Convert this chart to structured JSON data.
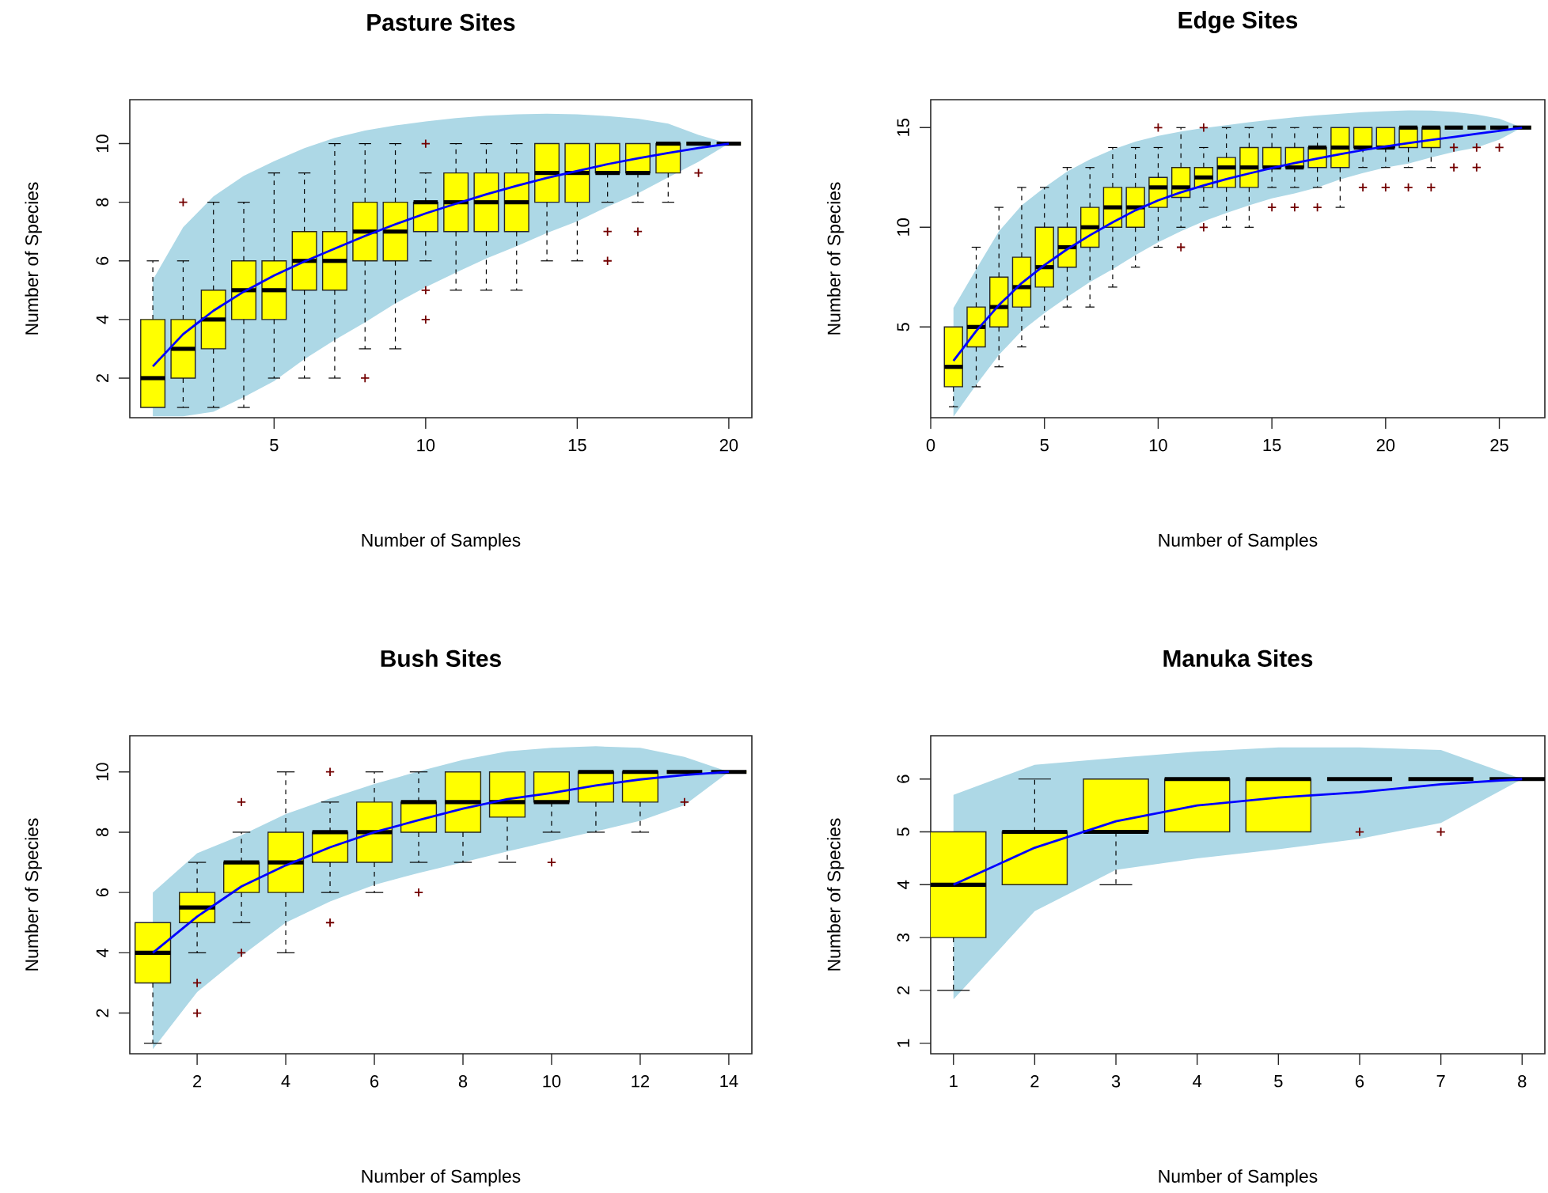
{
  "chart_data": [
    {
      "type": "box",
      "title": "Pasture Sites",
      "xlabel": "Number of Samples",
      "ylabel": "Number of Species",
      "ylim": [
        0.65,
        11.5
      ],
      "yticks": [
        2,
        4,
        6,
        8,
        10
      ],
      "categories": [
        null,
        null,
        null,
        null,
        "5",
        null,
        null,
        null,
        null,
        "10",
        null,
        null,
        null,
        null,
        "15",
        null,
        null,
        null,
        null,
        "20"
      ],
      "series": [
        {
          "type": "line",
          "color": "#0000ff",
          "values": [
            2.4,
            3.5,
            4.3,
            4.95,
            5.5,
            5.98,
            6.42,
            6.85,
            7.25,
            7.62,
            7.95,
            8.27,
            8.56,
            8.83,
            9.07,
            9.3,
            9.5,
            9.68,
            9.85,
            10
          ],
          "lower": [
            0.7,
            0.7,
            0.85,
            1.35,
            1.9,
            2.65,
            3.3,
            3.9,
            4.55,
            5.1,
            5.6,
            6.08,
            6.5,
            6.95,
            7.35,
            7.85,
            8.3,
            8.85,
            9.38,
            10
          ],
          "upper": [
            5.35,
            7.15,
            8.2,
            8.9,
            9.4,
            9.85,
            10.2,
            10.45,
            10.62,
            10.76,
            10.87,
            10.95,
            11.0,
            11.02,
            11.0,
            10.94,
            10.85,
            10.68,
            10.3,
            10
          ]
        },
        {
          "type": "box",
          "color": "#ffff00",
          "boxes": [
            {
              "low": 1,
              "q1": 1,
              "median": 2,
              "q3": 4,
              "high": 6
            },
            {
              "low": 1,
              "q1": 2,
              "median": 3,
              "q3": 4,
              "high": 6,
              "outliers": [
                8
              ]
            },
            {
              "low": 1,
              "q1": 3,
              "median": 4,
              "q3": 5,
              "high": 8
            },
            {
              "low": 1,
              "q1": 4,
              "median": 5,
              "q3": 6,
              "high": 8
            },
            {
              "low": 2,
              "q1": 4,
              "median": 5,
              "q3": 6,
              "high": 9
            },
            {
              "low": 2,
              "q1": 5,
              "median": 6,
              "q3": 7,
              "high": 9
            },
            {
              "low": 2,
              "q1": 5,
              "median": 6,
              "q3": 7,
              "high": 10
            },
            {
              "low": 3,
              "q1": 6,
              "median": 7,
              "q3": 8,
              "high": 10,
              "outliers": [
                2
              ]
            },
            {
              "low": 3,
              "q1": 6,
              "median": 7,
              "q3": 8,
              "high": 10
            },
            {
              "low": 6,
              "q1": 7,
              "median": 8,
              "q3": 8,
              "high": 9,
              "outliers": [
                10,
                5,
                4
              ]
            },
            {
              "low": 5,
              "q1": 7,
              "median": 8,
              "q3": 9,
              "high": 10
            },
            {
              "low": 5,
              "q1": 7,
              "median": 8,
              "q3": 9,
              "high": 10
            },
            {
              "low": 5,
              "q1": 7,
              "median": 8,
              "q3": 9,
              "high": 10
            },
            {
              "low": 6,
              "q1": 8,
              "median": 9,
              "q3": 10,
              "high": 10
            },
            {
              "low": 6,
              "q1": 8,
              "median": 9,
              "q3": 10,
              "high": 10
            },
            {
              "low": 8,
              "q1": 9,
              "median": 9,
              "q3": 10,
              "high": 10,
              "outliers": [
                7,
                6
              ]
            },
            {
              "low": 8,
              "q1": 9,
              "median": 9,
              "q3": 10,
              "high": 10,
              "outliers": [
                7
              ]
            },
            {
              "low": 8,
              "q1": 9,
              "median": 10,
              "q3": 10,
              "high": 10
            },
            {
              "low": 10,
              "q1": 10,
              "median": 10,
              "q3": 10,
              "high": 10,
              "outliers": [
                9
              ]
            },
            {
              "low": 10,
              "q1": 10,
              "median": 10,
              "q3": 10,
              "high": 10
            }
          ]
        }
      ]
    },
    {
      "type": "box",
      "title": "Edge Sites",
      "xlabel": "Number of Samples",
      "ylabel": "Number of Species",
      "ylim": [
        0.45,
        16.4
      ],
      "yticks": [
        5,
        10,
        15
      ],
      "categories": [
        "0",
        null,
        null,
        null,
        null,
        "5",
        null,
        null,
        null,
        null,
        "10",
        null,
        null,
        null,
        null,
        "15",
        null,
        null,
        null,
        null,
        "20",
        null,
        null,
        null,
        null,
        "25",
        null
      ],
      "series": [
        {
          "type": "line",
          "color": "#0000ff",
          "values": [
            null,
            3.3,
            4.8,
            6.1,
            7.2,
            8.1,
            8.9,
            9.6,
            10.25,
            10.85,
            11.35,
            11.75,
            12.1,
            12.42,
            12.7,
            12.97,
            13.22,
            13.45,
            13.67,
            13.87,
            14.05,
            14.22,
            14.38,
            14.53,
            14.69,
            14.84,
            15
          ],
          "lower": [
            null,
            0.5,
            2.1,
            3.6,
            4.8,
            5.7,
            6.5,
            7.25,
            7.9,
            8.6,
            9.25,
            9.8,
            10.3,
            10.72,
            11.1,
            11.45,
            11.7,
            12.0,
            12.4,
            12.72,
            13.0,
            13.2,
            13.5,
            13.78,
            14.0,
            14.4,
            15
          ],
          "upper": [
            null,
            5.95,
            7.9,
            9.8,
            11.1,
            12.0,
            12.8,
            13.4,
            13.9,
            14.3,
            14.58,
            14.8,
            14.98,
            15.12,
            15.27,
            15.4,
            15.52,
            15.62,
            15.7,
            15.77,
            15.82,
            15.86,
            15.85,
            15.78,
            15.66,
            15.45,
            15
          ]
        },
        {
          "type": "box",
          "color": "#ffff00",
          "boxes": [
            null,
            {
              "low": 1,
              "q1": 2,
              "median": 3,
              "q3": 5,
              "high": 5
            },
            {
              "low": 2,
              "q1": 4,
              "median": 5,
              "q3": 6,
              "high": 9
            },
            {
              "low": 3,
              "q1": 5,
              "median": 6,
              "q3": 7.5,
              "high": 11
            },
            {
              "low": 4,
              "q1": 6,
              "median": 7,
              "q3": 8.5,
              "high": 12
            },
            {
              "low": 5,
              "q1": 7,
              "median": 8,
              "q3": 10,
              "high": 12
            },
            {
              "low": 6,
              "q1": 8,
              "median": 9,
              "q3": 10,
              "high": 13
            },
            {
              "low": 6,
              "q1": 9,
              "median": 10,
              "q3": 11,
              "high": 13
            },
            {
              "low": 7,
              "q1": 10,
              "median": 11,
              "q3": 12,
              "high": 14
            },
            {
              "low": 8,
              "q1": 10,
              "median": 11,
              "q3": 12,
              "high": 14
            },
            {
              "low": 9,
              "q1": 11,
              "median": 12,
              "q3": 12.5,
              "high": 14,
              "outliers": [
                15
              ]
            },
            {
              "low": 10,
              "q1": 11.5,
              "median": 12,
              "q3": 13,
              "high": 15,
              "outliers": [
                9
              ]
            },
            {
              "low": 11,
              "q1": 12,
              "median": 12.5,
              "q3": 13,
              "high": 14,
              "outliers": [
                15,
                10
              ]
            },
            {
              "low": 10,
              "q1": 12,
              "median": 13,
              "q3": 13.5,
              "high": 15
            },
            {
              "low": 10,
              "q1": 12,
              "median": 13,
              "q3": 14,
              "high": 15
            },
            {
              "low": 12,
              "q1": 13,
              "median": 13,
              "q3": 14,
              "high": 15,
              "outliers": [
                11
              ]
            },
            {
              "low": 12,
              "q1": 13,
              "median": 13,
              "q3": 14,
              "high": 15,
              "outliers": [
                11
              ]
            },
            {
              "low": 12,
              "q1": 13,
              "median": 14,
              "q3": 14,
              "high": 15,
              "outliers": [
                11
              ]
            },
            {
              "low": 11,
              "q1": 13,
              "median": 14,
              "q3": 15,
              "high": 15
            },
            {
              "low": 13,
              "q1": 14,
              "median": 14,
              "q3": 15,
              "high": 15,
              "outliers": [
                12
              ]
            },
            {
              "low": 13,
              "q1": 14,
              "median": 14,
              "q3": 15,
              "high": 15,
              "outliers": [
                12
              ]
            },
            {
              "low": 13,
              "q1": 14,
              "median": 15,
              "q3": 15,
              "high": 15,
              "outliers": [
                12
              ]
            },
            {
              "low": 13,
              "q1": 14,
              "median": 15,
              "q3": 15,
              "high": 15,
              "outliers": [
                12
              ]
            },
            {
              "low": 15,
              "q1": 15,
              "median": 15,
              "q3": 15,
              "high": 15,
              "outliers": [
                14,
                13
              ]
            },
            {
              "low": 15,
              "q1": 15,
              "median": 15,
              "q3": 15,
              "high": 15,
              "outliers": [
                14,
                13
              ]
            },
            {
              "low": 15,
              "q1": 15,
              "median": 15,
              "q3": 15,
              "high": 15,
              "outliers": [
                14
              ]
            },
            {
              "low": 15,
              "q1": 15,
              "median": 15,
              "q3": 15,
              "high": 15
            }
          ]
        }
      ]
    },
    {
      "type": "box",
      "title": "Bush Sites",
      "xlabel": "Number of Samples",
      "ylabel": "Number of Species",
      "ylim": [
        0.65,
        11.2
      ],
      "yticks": [
        2,
        4,
        6,
        8,
        10
      ],
      "categories": [
        null,
        "2",
        null,
        "4",
        null,
        "6",
        null,
        "8",
        null,
        "10",
        null,
        "12",
        null,
        "14"
      ],
      "series": [
        {
          "type": "line",
          "color": "#0000ff",
          "values": [
            4.0,
            5.2,
            6.2,
            6.9,
            7.5,
            8.0,
            8.4,
            8.78,
            9.1,
            9.3,
            9.55,
            9.75,
            9.9,
            10
          ],
          "lower": [
            0.8,
            2.7,
            3.9,
            5.0,
            5.7,
            6.25,
            6.65,
            7.0,
            7.36,
            7.7,
            8.03,
            8.38,
            8.9,
            10
          ],
          "upper": [
            6.0,
            7.3,
            7.9,
            8.6,
            9.12,
            9.6,
            10.02,
            10.4,
            10.68,
            10.8,
            10.85,
            10.8,
            10.5,
            10
          ]
        },
        {
          "type": "box",
          "color": "#ffff00",
          "boxes": [
            {
              "low": 1,
              "q1": 3,
              "median": 4,
              "q3": 5,
              "high": 5
            },
            {
              "low": 4,
              "q1": 5,
              "median": 5.5,
              "q3": 6,
              "high": 7,
              "outliers": [
                3,
                2
              ]
            },
            {
              "low": 5,
              "q1": 6,
              "median": 7,
              "q3": 7,
              "high": 8,
              "outliers": [
                9,
                4
              ]
            },
            {
              "low": 4,
              "q1": 6,
              "median": 7,
              "q3": 8,
              "high": 10
            },
            {
              "low": 6,
              "q1": 7,
              "median": 8,
              "q3": 8,
              "high": 9,
              "outliers": [
                10,
                5
              ]
            },
            {
              "low": 6,
              "q1": 7,
              "median": 8,
              "q3": 9,
              "high": 10
            },
            {
              "low": 7,
              "q1": 8,
              "median": 9,
              "q3": 9,
              "high": 10,
              "outliers": [
                6
              ]
            },
            {
              "low": 7,
              "q1": 8,
              "median": 9,
              "q3": 10,
              "high": 10
            },
            {
              "low": 7,
              "q1": 8.5,
              "median": 9,
              "q3": 10,
              "high": 10
            },
            {
              "low": 8,
              "q1": 9,
              "median": 9,
              "q3": 10,
              "high": 10,
              "outliers": [
                7
              ]
            },
            {
              "low": 8,
              "q1": 9,
              "median": 10,
              "q3": 10,
              "high": 10
            },
            {
              "low": 8,
              "q1": 9,
              "median": 10,
              "q3": 10,
              "high": 10
            },
            {
              "low": 10,
              "q1": 10,
              "median": 10,
              "q3": 10,
              "high": 10,
              "outliers": [
                9
              ]
            },
            {
              "low": 10,
              "q1": 10,
              "median": 10,
              "q3": 10,
              "high": 10
            }
          ]
        }
      ]
    },
    {
      "type": "box",
      "title": "Manuka Sites",
      "xlabel": "Number of Samples",
      "ylabel": "Number of Species",
      "ylim": [
        0.8,
        6.82
      ],
      "yticks": [
        1,
        2,
        3,
        4,
        5,
        6
      ],
      "categories": [
        "1",
        "2",
        "3",
        "4",
        "5",
        "6",
        "7",
        "8"
      ],
      "series": [
        {
          "type": "line",
          "color": "#0000ff",
          "values": [
            4.0,
            4.7,
            5.2,
            5.5,
            5.65,
            5.75,
            5.9,
            6.0
          ],
          "lower": [
            1.83,
            3.5,
            4.28,
            4.5,
            4.67,
            4.87,
            5.17,
            6
          ],
          "upper": [
            5.7,
            6.27,
            6.4,
            6.52,
            6.6,
            6.6,
            6.55,
            6
          ]
        },
        {
          "type": "box",
          "color": "#ffff00",
          "boxes": [
            {
              "low": 2,
              "q1": 3,
              "median": 4,
              "q3": 5,
              "high": 5
            },
            {
              "low": 4,
              "q1": 4,
              "median": 5,
              "q3": 5,
              "high": 6
            },
            {
              "low": 4,
              "q1": 5,
              "median": 5,
              "q3": 6,
              "high": 6
            },
            {
              "low": 5,
              "q1": 5,
              "median": 6,
              "q3": 6,
              "high": 6
            },
            {
              "low": 5,
              "q1": 5,
              "median": 6,
              "q3": 6,
              "high": 6
            },
            {
              "low": 6,
              "q1": 6,
              "median": 6,
              "q3": 6,
              "high": 6,
              "outliers": [
                5
              ]
            },
            {
              "low": 6,
              "q1": 6,
              "median": 6,
              "q3": 6,
              "high": 6,
              "outliers": [
                5
              ]
            },
            {
              "low": 6,
              "q1": 6,
              "median": 6,
              "q3": 6,
              "high": 6
            }
          ]
        }
      ]
    }
  ]
}
